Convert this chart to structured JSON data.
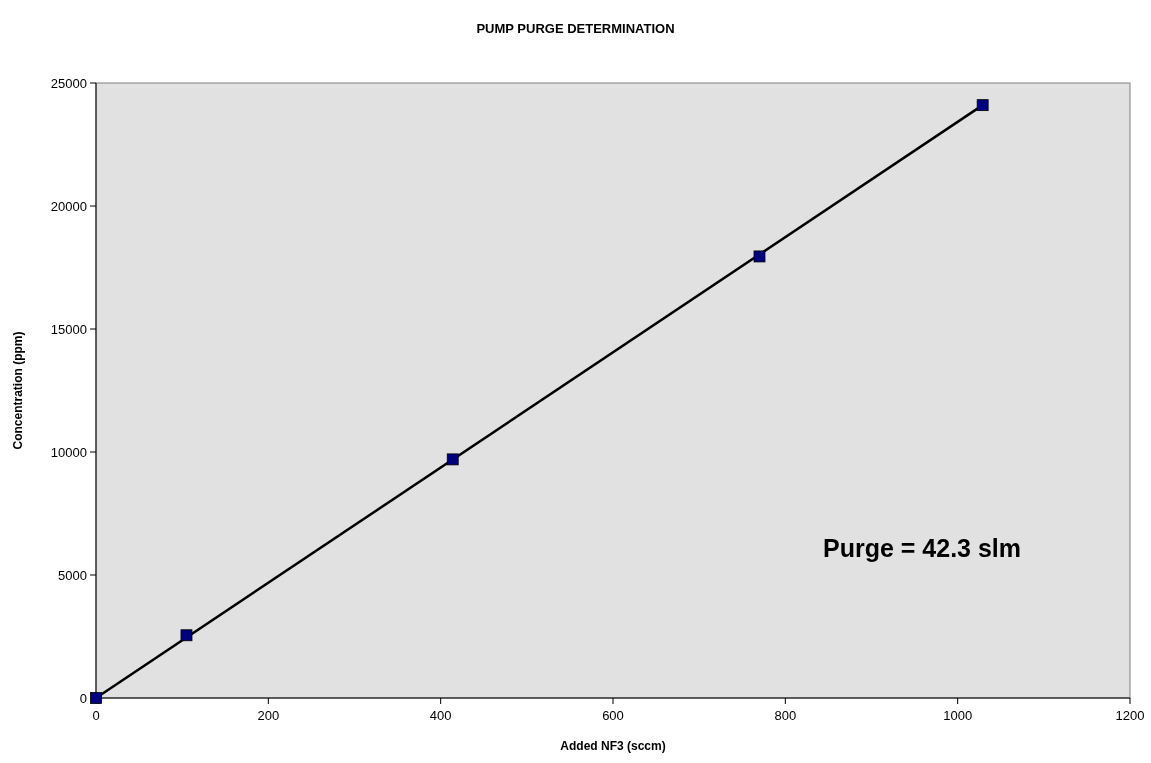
{
  "chart_data": {
    "type": "scatter",
    "title": "PUMP PURGE DETERMINATION",
    "xlabel": "Added NF3 (sccm)",
    "ylabel": "Concentration (ppm)",
    "xlim": [
      0,
      1200
    ],
    "xticks": [
      0,
      200,
      400,
      600,
      800,
      1000,
      1200
    ],
    "ylim": [
      0,
      25000
    ],
    "yticks": [
      0,
      5000,
      10000,
      15000,
      20000,
      25000
    ],
    "grid": false,
    "series": [
      {
        "type": "line",
        "color": "#000000",
        "marker": "none",
        "x": [
          0,
          1029
        ],
        "values": [
          0,
          24100
        ]
      },
      {
        "color": "#000080",
        "marker": "square",
        "x": [
          0,
          105,
          414,
          770,
          1029
        ],
        "values": [
          0,
          2550,
          9700,
          17950,
          24100
        ]
      }
    ],
    "annotations": [
      "Purge = 42.3 slm"
    ]
  }
}
